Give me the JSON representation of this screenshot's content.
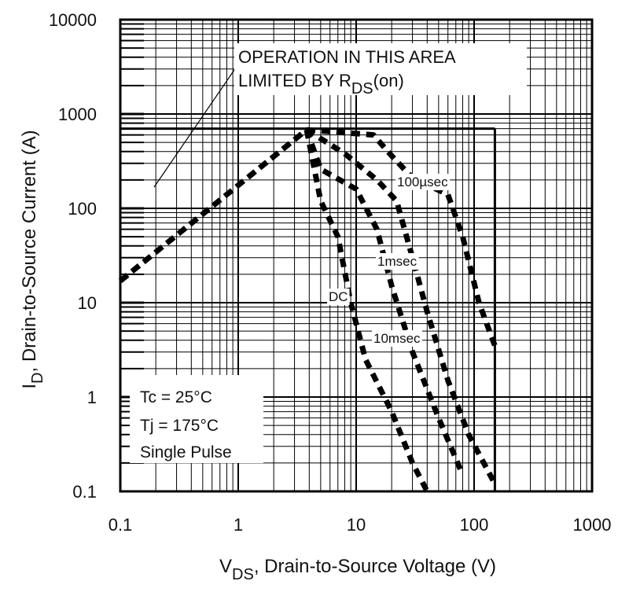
{
  "chart_data": {
    "type": "line",
    "x_scale": "log",
    "y_scale": "log",
    "xlim": [
      0.1,
      1000
    ],
    "ylim": [
      0.1,
      10000
    ],
    "xlabel_main": "V",
    "xlabel_sub": "DS",
    "xlabel_rest": ", Drain-to-Source Voltage (V)",
    "ylabel_main": "I",
    "ylabel_sub": "D",
    "ylabel_rest": ",  Drain-to-Source Current (A)",
    "x_ticks": [
      "0.1",
      "1",
      "10",
      "100",
      "1000"
    ],
    "y_ticks": [
      "0.1",
      "1",
      "10",
      "100",
      "1000",
      "10000"
    ],
    "grid": true,
    "annotation_line1": "OPERATION IN THIS AREA",
    "annotation_line2_main": "LIMITED BY R",
    "annotation_line2_sub": "DS",
    "annotation_line2_rest": "(on)",
    "conditions": {
      "tc": "Tc = 25°C",
      "tj": "Tj = 175°C",
      "pulse": "Single Pulse"
    },
    "limit_line": [
      [
        0.1,
        17
      ],
      [
        3.8,
        680
      ]
    ],
    "current_limit": 700,
    "voltage_limit": 150,
    "series": [
      {
        "name": "100µsec",
        "label": "100µsec",
        "points": [
          [
            3.8,
            680
          ],
          [
            14,
            600
          ],
          [
            20,
            360
          ],
          [
            30,
            210
          ],
          [
            60,
            140
          ],
          [
            80,
            50
          ],
          [
            110,
            10
          ],
          [
            150,
            3.5
          ]
        ]
      },
      {
        "name": "1msec",
        "label": "1msec",
        "points": [
          [
            3.8,
            680
          ],
          [
            8,
            380
          ],
          [
            15,
            200
          ],
          [
            22,
            120
          ],
          [
            30,
            30
          ],
          [
            40,
            8
          ],
          [
            60,
            1.5
          ],
          [
            90,
            0.4
          ],
          [
            150,
            0.12
          ]
        ]
      },
      {
        "name": "10msec",
        "label": "10msec",
        "points": [
          [
            3.8,
            680
          ],
          [
            5,
            260
          ],
          [
            10,
            160
          ],
          [
            15,
            60
          ],
          [
            20,
            15
          ],
          [
            30,
            3
          ],
          [
            50,
            0.6
          ],
          [
            80,
            0.15
          ]
        ]
      },
      {
        "name": "DC",
        "label": "DC",
        "points": [
          [
            3.8,
            680
          ],
          [
            5,
            120
          ],
          [
            7,
            50
          ],
          [
            9,
            10
          ],
          [
            12,
            2.5
          ],
          [
            20,
            0.7
          ],
          [
            30,
            0.2
          ],
          [
            40,
            0.1
          ]
        ]
      }
    ]
  }
}
